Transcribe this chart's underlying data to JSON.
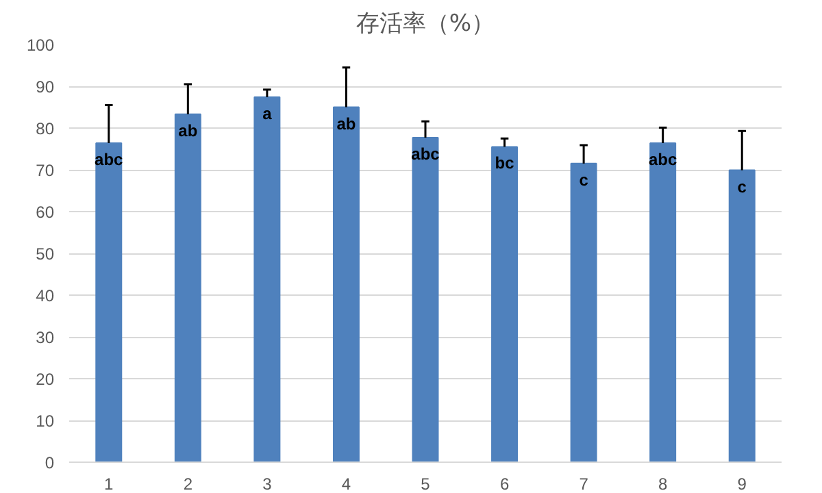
{
  "chart_data": {
    "type": "bar",
    "title": "存活率（%）",
    "categories": [
      "1",
      "2",
      "3",
      "4",
      "5",
      "6",
      "7",
      "8",
      "9"
    ],
    "values": [
      76.4,
      83.3,
      87.4,
      85.0,
      77.7,
      75.5,
      71.5,
      76.4,
      69.9
    ],
    "errors": [
      [
        76.4,
        85.5
      ],
      [
        83.3,
        90.5
      ],
      [
        87.4,
        89.2
      ],
      [
        85.0,
        94.5
      ],
      [
        77.7,
        81.6
      ],
      [
        75.5,
        77.5
      ],
      [
        71.5,
        75.9
      ],
      [
        76.4,
        80.1
      ],
      [
        69.9,
        79.3
      ]
    ],
    "color": "#4f81bd",
    "ylim": [
      0,
      100
    ],
    "yticks": [
      0,
      10,
      20,
      30,
      40,
      50,
      60,
      70,
      80,
      90,
      100
    ],
    "grid": "y",
    "annotations": [
      {
        "text": "abc",
        "x": "1",
        "y": 76.4
      },
      {
        "text": "ab",
        "x": "2",
        "y": 83.3
      },
      {
        "text": "a",
        "x": "3",
        "y": 87.4
      },
      {
        "text": "ab",
        "x": "4",
        "y": 85.0
      },
      {
        "text": "abc",
        "x": "5",
        "y": 77.7
      },
      {
        "text": "bc",
        "x": "6",
        "y": 75.5
      },
      {
        "text": "c",
        "x": "7",
        "y": 71.5
      },
      {
        "text": "abc",
        "x": "8",
        "y": 76.4
      },
      {
        "text": "c",
        "x": "9",
        "y": 69.9
      }
    ]
  }
}
